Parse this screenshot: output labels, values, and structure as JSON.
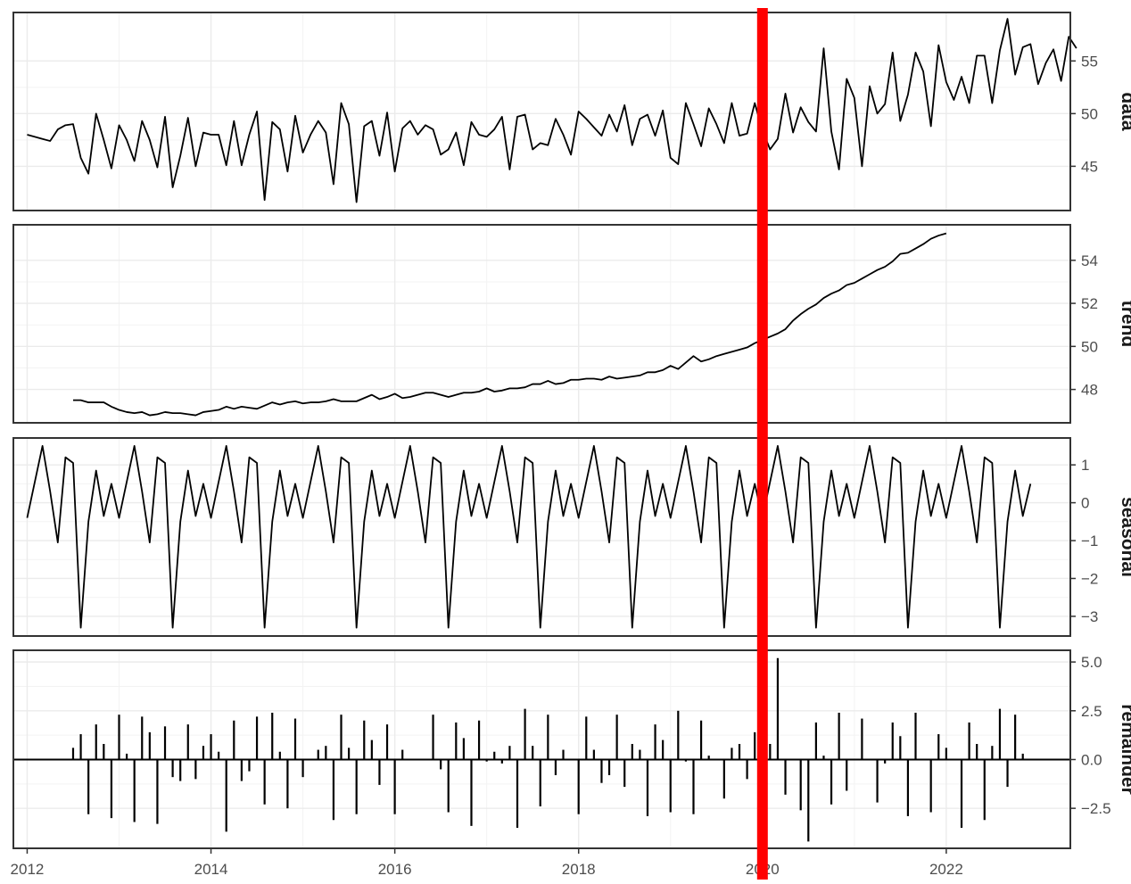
{
  "chart_data": {
    "type": "line",
    "title": "",
    "xlabel": "",
    "xlim": [
      2011.85,
      2023.35
    ],
    "x_ticks": [
      "2012",
      "2014",
      "2016",
      "2018",
      "2020",
      "2022"
    ],
    "x_tick_values": [
      2012,
      2014,
      2016,
      2018,
      2020,
      2022
    ],
    "grid": true,
    "marker": {
      "x": 2020.0,
      "color": "#ff0000"
    },
    "colors": {
      "line": "#000000",
      "frame": "#333333",
      "grid": "#ebebeb",
      "tick_text": "#4d4d4d"
    },
    "panels": [
      {
        "name": "data",
        "label": "data",
        "type": "line",
        "ylim": [
          40.8,
          59.6
        ],
        "y_ticks": [
          "45",
          "50",
          "55"
        ],
        "y_tick_values": [
          45,
          50,
          55
        ],
        "x_start": 2012.0,
        "step": 0.08333,
        "values": [
          48,
          47.8,
          47.6,
          47.4,
          48.5,
          48.9,
          49.0,
          45.8,
          44.3,
          50.0,
          47.5,
          44.8,
          48.9,
          47.5,
          45.5,
          49.3,
          47.5,
          44.9,
          49.7,
          43.0,
          46.0,
          49.6,
          45.0,
          48.2,
          48.0,
          48.0,
          45.1,
          49.3,
          45.1,
          48.0,
          50.2,
          41.8,
          49.2,
          48.5,
          44.5,
          49.8,
          46.3,
          48.0,
          49.3,
          48.2,
          43.3,
          51.0,
          49.0,
          41.6,
          48.8,
          49.3,
          46.0,
          50.1,
          44.5,
          48.6,
          49.3,
          48.0,
          48.9,
          48.5,
          46.1,
          46.6,
          48.2,
          45.1,
          49.2,
          48.0,
          47.8,
          48.5,
          49.7,
          44.7,
          49.7,
          49.9,
          46.6,
          47.2,
          47.0,
          49.5,
          48.0,
          46.1,
          50.2,
          49.5,
          48.7,
          47.9,
          49.9,
          48.3,
          50.8,
          47.0,
          49.5,
          49.9,
          47.9,
          50.3,
          45.8,
          45.2,
          51.0,
          49.0,
          46.9,
          50.5,
          49.0,
          47.2,
          51.0,
          47.9,
          48.1,
          51.0,
          48.4,
          46.6,
          47.6,
          51.9,
          48.2,
          50.6,
          49.2,
          48.3,
          56.2,
          48.3,
          44.7,
          53.3,
          51.5,
          45.0,
          52.6,
          50.0,
          50.9,
          55.8,
          49.3,
          51.8,
          55.8,
          54.0,
          48.8,
          56.5,
          53.0,
          51.3,
          53.5,
          51.0,
          55.5,
          55.5,
          51.0,
          56.0,
          59.0,
          53.7,
          56.3,
          56.6,
          52.8,
          54.8,
          56.1,
          53.1,
          57.3,
          56.2
        ]
      },
      {
        "name": "trend",
        "label": "trend",
        "type": "line",
        "ylim": [
          46.45,
          55.65
        ],
        "y_ticks": [
          "48",
          "50",
          "52",
          "54"
        ],
        "y_tick_values": [
          48,
          50,
          52,
          54
        ],
        "x_start": 2012.5,
        "step": 0.08333,
        "values": [
          47.5,
          47.5,
          47.4,
          47.4,
          47.4,
          47.2,
          47.05,
          46.95,
          46.9,
          46.95,
          46.8,
          46.85,
          46.95,
          46.9,
          46.9,
          46.85,
          46.8,
          46.95,
          47.0,
          47.05,
          47.2,
          47.1,
          47.2,
          47.15,
          47.1,
          47.25,
          47.4,
          47.3,
          47.4,
          47.45,
          47.35,
          47.4,
          47.4,
          47.45,
          47.55,
          47.45,
          47.45,
          47.45,
          47.6,
          47.75,
          47.55,
          47.65,
          47.8,
          47.6,
          47.65,
          47.75,
          47.85,
          47.85,
          47.75,
          47.65,
          47.75,
          47.85,
          47.85,
          47.9,
          48.05,
          47.9,
          47.95,
          48.05,
          48.05,
          48.1,
          48.25,
          48.25,
          48.4,
          48.25,
          48.3,
          48.45,
          48.45,
          48.5,
          48.5,
          48.45,
          48.6,
          48.5,
          48.55,
          48.6,
          48.65,
          48.8,
          48.8,
          48.9,
          49.1,
          48.95,
          49.25,
          49.55,
          49.3,
          49.4,
          49.55,
          49.65,
          49.75,
          49.85,
          49.95,
          50.15,
          50.3,
          50.45,
          50.6,
          50.8,
          51.2,
          51.5,
          51.75,
          51.95,
          52.25,
          52.45,
          52.6,
          52.85,
          52.95,
          53.15,
          53.35,
          53.55,
          53.7,
          53.95,
          54.3,
          54.35,
          54.55,
          54.75,
          55.0,
          55.15,
          55.25
        ]
      },
      {
        "name": "seasonal",
        "label": "seasonal",
        "type": "line",
        "ylim": [
          -3.52,
          1.71
        ],
        "y_ticks": [
          "1",
          "0",
          "−1",
          "−2",
          "−3"
        ],
        "y_tick_values": [
          1,
          0,
          -1,
          -2,
          -3
        ],
        "x_start": 2012.0,
        "step": 0.08333,
        "pattern": [
          -0.4,
          0.55,
          1.5,
          0.3,
          -1.05,
          1.2,
          1.05,
          -3.3,
          -0.5,
          0.85,
          -0.35,
          0.5
        ]
      },
      {
        "name": "remainder",
        "label": "remainder",
        "type": "bar",
        "ylim": [
          -4.55,
          5.6
        ],
        "y_ticks": [
          "5.0",
          "2.5",
          "0.0",
          "−2.5"
        ],
        "y_tick_values": [
          5.0,
          2.5,
          0.0,
          -2.5
        ],
        "x_start": 2012.5,
        "step": 0.08333,
        "values": [
          0.6,
          1.3,
          -2.8,
          1.8,
          0.8,
          -3.0,
          2.3,
          0.3,
          -3.2,
          2.2,
          1.4,
          -3.3,
          1.7,
          -0.9,
          -1.1,
          1.8,
          -1.0,
          0.7,
          1.3,
          0.4,
          -3.7,
          2.0,
          -1.1,
          -0.6,
          2.2,
          -2.3,
          2.4,
          0.4,
          -2.5,
          2.1,
          -0.9,
          0.0,
          0.5,
          0.7,
          -3.1,
          2.3,
          0.6,
          -2.8,
          2.0,
          1.0,
          -1.3,
          1.8,
          -2.8,
          0.5,
          0.0,
          0.0,
          0.0,
          2.3,
          -0.5,
          -2.7,
          1.9,
          1.1,
          -3.4,
          2.0,
          -0.1,
          0.4,
          -0.2,
          0.7,
          -3.5,
          2.6,
          0.7,
          -2.4,
          2.3,
          -0.8,
          0.5,
          0.0,
          -2.8,
          2.2,
          0.5,
          -1.2,
          -0.8,
          2.3,
          -1.4,
          0.8,
          0.5,
          -2.9,
          1.8,
          1.0,
          -2.7,
          2.5,
          -0.1,
          -2.8,
          2.0,
          0.2,
          0.0,
          -2.0,
          0.6,
          0.8,
          -1.0,
          1.4,
          -1.1,
          0.8,
          5.2,
          -1.8,
          0.0,
          -2.6,
          -4.2,
          1.9,
          0.2,
          -2.3,
          2.4,
          -1.6,
          0.0,
          2.1,
          0.0,
          -2.2,
          -0.2,
          1.9,
          1.2,
          -2.9,
          2.4,
          0.0,
          -2.7,
          1.3,
          0.6,
          0.0,
          -3.5,
          1.9,
          0.8,
          -3.1,
          0.7,
          2.6,
          -1.4,
          2.3,
          0.3
        ]
      }
    ]
  }
}
